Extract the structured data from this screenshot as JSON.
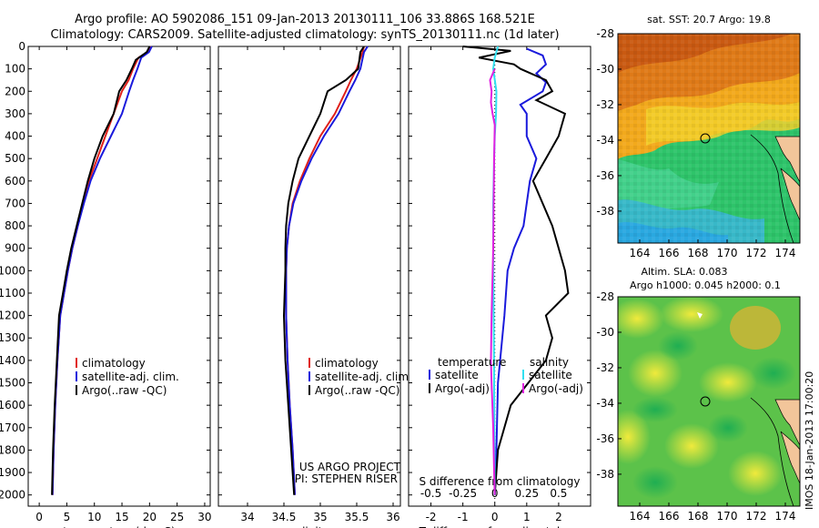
{
  "header": {
    "line1": "Argo profile: AO 5902086_151 09-Jan-2013 20130111_106 33.886S 168.521E",
    "line2": "Climatology: CARS2009. Satellite-adjusted climatology: synTS_20130111.nc (1d later)"
  },
  "colors": {
    "climatology": "#e0201a",
    "satellite_adj": "#1a1adc",
    "argo": "#000000",
    "satellite_t": "#1a1adc",
    "satellite_s": "#30e0f0",
    "argo_s_adj": "#e020e0"
  },
  "depth_ticks": [
    "0",
    "100",
    "200",
    "300",
    "400",
    "500",
    "600",
    "700",
    "800",
    "900",
    "1000",
    "1100",
    "1200",
    "1300",
    "1400",
    "1500",
    "1600",
    "1700",
    "1800",
    "1900",
    "2000"
  ],
  "chart_data": [
    {
      "type": "line",
      "xlabel": "temperature (deg C)",
      "xlim": [
        -2,
        31
      ],
      "ylim": [
        0,
        2050
      ],
      "xticks": [
        "0",
        "5",
        "10",
        "15",
        "20",
        "25",
        "30"
      ],
      "legend": [
        "climatology",
        "satellite-adj. clim.",
        "Argo(..raw -QC)"
      ],
      "series": [
        {
          "name": "climatology",
          "x": [
            20.3,
            19.8,
            18.0,
            17.0,
            16.2,
            15.0,
            13.5,
            12.0,
            10.5,
            9.0,
            8.0,
            7.0,
            6.0,
            5.2,
            4.5,
            3.8,
            3.3,
            2.9,
            2.6,
            2.4
          ],
          "y": [
            0,
            25,
            50,
            100,
            150,
            200,
            300,
            400,
            500,
            600,
            700,
            800,
            900,
            1000,
            1100,
            1200,
            1400,
            1600,
            1800,
            2000
          ]
        },
        {
          "name": "satellite-adj. clim.",
          "x": [
            20.4,
            19.9,
            18.5,
            17.8,
            17.0,
            16.3,
            15.0,
            13.0,
            11.0,
            9.3,
            8.1,
            7.0,
            6.0,
            5.2,
            4.5,
            3.8,
            3.3,
            2.9,
            2.6,
            2.4
          ],
          "y": [
            0,
            25,
            50,
            100,
            150,
            200,
            300,
            400,
            500,
            600,
            700,
            800,
            900,
            1000,
            1100,
            1200,
            1400,
            1600,
            1800,
            2000
          ]
        },
        {
          "name": "Argo(..raw -QC)",
          "x": [
            20.0,
            19.5,
            17.5,
            16.8,
            15.8,
            14.5,
            13.5,
            11.5,
            10.0,
            8.8,
            7.8,
            6.8,
            5.8,
            5.0,
            4.3,
            3.6,
            3.2,
            2.8,
            2.5,
            2.3
          ],
          "y": [
            0,
            25,
            60,
            100,
            150,
            200,
            300,
            400,
            500,
            600,
            700,
            800,
            900,
            1000,
            1100,
            1200,
            1400,
            1600,
            1800,
            2000
          ]
        }
      ]
    },
    {
      "type": "line",
      "xlabel": "salinity",
      "xlim": [
        33.6,
        36.1
      ],
      "ylim": [
        0,
        2050
      ],
      "xticks": [
        "34",
        "34.5",
        "35",
        "35.5",
        "36"
      ],
      "legend": [
        "climatology",
        "satellite-adj. clim.",
        "Argo(..raw -QC)"
      ],
      "annotation": [
        "US ARGO PROJECT",
        "PI: STEPHEN RISER"
      ],
      "series": [
        {
          "name": "climatology",
          "x": [
            35.6,
            35.58,
            35.5,
            35.42,
            35.35,
            35.2,
            35.0,
            34.85,
            34.72,
            34.62,
            34.57,
            34.54,
            34.53,
            34.53,
            34.55,
            34.58,
            34.62,
            34.65
          ],
          "y": [
            0,
            25,
            100,
            150,
            200,
            300,
            400,
            500,
            600,
            700,
            800,
            900,
            1000,
            1200,
            1400,
            1600,
            1800,
            2000
          ]
        },
        {
          "name": "satellite-adj. clim.",
          "x": [
            35.65,
            35.6,
            35.55,
            35.48,
            35.4,
            35.25,
            35.05,
            34.88,
            34.74,
            34.63,
            34.57,
            34.54,
            34.53,
            34.53,
            34.55,
            34.58,
            34.62,
            34.65
          ],
          "y": [
            0,
            25,
            100,
            150,
            200,
            300,
            400,
            500,
            600,
            700,
            800,
            900,
            1000,
            1200,
            1400,
            1600,
            1800,
            2000
          ]
        },
        {
          "name": "Argo(..raw -QC)",
          "x": [
            35.6,
            35.55,
            35.52,
            35.35,
            35.1,
            35.0,
            34.85,
            34.7,
            34.62,
            34.56,
            34.53,
            34.52,
            34.52,
            34.5,
            34.52,
            34.56,
            34.6,
            34.64
          ],
          "y": [
            0,
            25,
            100,
            150,
            200,
            300,
            400,
            500,
            600,
            700,
            800,
            900,
            1000,
            1200,
            1400,
            1600,
            1800,
            2000
          ]
        }
      ]
    },
    {
      "type": "line",
      "xlabel": "T difference from climatology",
      "xlim": [
        -2.7,
        3.0
      ],
      "ylim": [
        0,
        2050
      ],
      "xticks": [
        "-2",
        "-1",
        "0",
        "1",
        "2"
      ],
      "secondary_xlabel": "S difference from climatology",
      "secondary_xticks": [
        "-0.5",
        "-0.25",
        "0",
        "0.25",
        "0.5"
      ],
      "secondary_xlim": [
        -0.675,
        0.75
      ],
      "legend_titles": [
        "temperature",
        "salinity"
      ],
      "legend": [
        "satellite",
        "Argo(-adj)",
        "satellite",
        "Argo(-adj)"
      ],
      "series": [
        {
          "name": "satellite",
          "x": [
            1.0,
            1.5,
            1.6,
            1.3,
            1.6,
            1.5,
            0.8,
            1.0,
            1.0,
            1.3,
            1.1,
            1.0,
            0.9,
            0.6,
            0.4,
            0.3,
            0.1,
            0.05,
            0.0
          ],
          "y": [
            10,
            40,
            80,
            120,
            160,
            200,
            260,
            300,
            400,
            500,
            600,
            700,
            800,
            900,
            1000,
            1200,
            1500,
            1800,
            2000
          ]
        },
        {
          "name": "Argo(-adj)",
          "x": [
            -1.0,
            0.5,
            -0.5,
            0.6,
            0.8,
            1.6,
            1.8,
            1.3,
            2.2,
            2.0,
            1.6,
            1.2,
            1.8,
            2.0,
            2.2,
            2.3,
            1.6,
            1.8,
            1.6,
            0.5,
            0.1,
            0.0
          ],
          "y": [
            0,
            20,
            50,
            80,
            100,
            150,
            200,
            240,
            300,
            400,
            500,
            600,
            800,
            900,
            1000,
            1100,
            1200,
            1300,
            1400,
            1600,
            1800,
            2000
          ]
        },
        {
          "name": "satellite",
          "x": [
            0.1,
            0.0,
            -0.05,
            0.05,
            0.04,
            0.0,
            -0.02,
            -0.05,
            -0.05,
            -0.04,
            -0.03,
            -0.02,
            -0.01,
            0.0
          ],
          "y": [
            0,
            50,
            100,
            200,
            300,
            400,
            500,
            700,
            900,
            1100,
            1300,
            1500,
            1800,
            2000
          ]
        },
        {
          "name": "Argo(-adj)",
          "x": [
            0.0,
            -0.15,
            -0.1,
            -0.12,
            -0.07,
            0.0,
            -0.02,
            -0.05,
            -0.1,
            -0.12,
            -0.1,
            -0.05,
            -0.02,
            0.0
          ],
          "y": [
            100,
            150,
            200,
            250,
            300,
            350,
            500,
            900,
            1200,
            1400,
            1500,
            1700,
            1900,
            2000
          ]
        }
      ]
    },
    {
      "type": "heatmap",
      "title": "sat. SST: 20.7 Argo: 19.8",
      "xlim": [
        162.5,
        175
      ],
      "ylim": [
        -39.8,
        -28
      ],
      "xticks": [
        "164",
        "166",
        "168",
        "170",
        "172",
        "174"
      ],
      "yticks": [
        "-28",
        "-30",
        "-32",
        "-34",
        "-36",
        "-38"
      ],
      "marker": {
        "lon": 168.5,
        "lat": -33.9
      }
    },
    {
      "type": "heatmap",
      "title": "Altim. SLA: 0.083",
      "subtitle": "Argo h1000: 0.045 h2000: 0.1",
      "xlim": [
        162.5,
        175
      ],
      "ylim": [
        -39.8,
        -28
      ],
      "xticks": [
        "164",
        "166",
        "168",
        "170",
        "172",
        "174"
      ],
      "yticks": [
        "-28",
        "-30",
        "-32",
        "-34",
        "-36",
        "-38"
      ],
      "marker": {
        "lon": 168.5,
        "lat": -33.9
      }
    }
  ],
  "footer_stamp": "IMOS 18-Jan-2013 17:00:20"
}
